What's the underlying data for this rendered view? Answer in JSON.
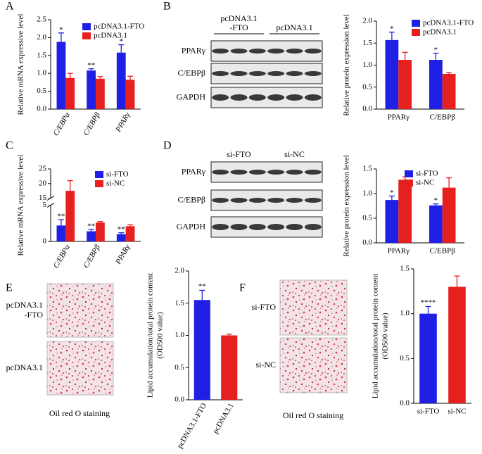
{
  "chart_data": [
    {
      "type": "bar",
      "panel": "A",
      "ylabel": "Relative mRNA expressive level",
      "categories": [
        "C/EBPα",
        "C/EBPβ",
        "PPARγ"
      ],
      "series": [
        {
          "name": "pcDNA3.1-FTO",
          "color": "#1f1fe6",
          "values": [
            1.88,
            1.08,
            1.58
          ],
          "errors": [
            0.25,
            0.05,
            0.22
          ],
          "annotations": [
            "*",
            "**",
            "*"
          ]
        },
        {
          "name": "pcDNA3.1",
          "color": "#e61f1f",
          "values": [
            0.87,
            0.85,
            0.82
          ],
          "errors": [
            0.13,
            0.06,
            0.1
          ]
        }
      ],
      "ylim": [
        0,
        2.5
      ],
      "yticks": [
        {
          "value": 0,
          "label": "0.0"
        },
        {
          "value": 0.5,
          "label": "0.5"
        },
        {
          "value": 1,
          "label": "1.0"
        },
        {
          "value": 1.5,
          "label": "1.5"
        },
        {
          "value": 2,
          "label": "2.0"
        },
        {
          "value": 2.5,
          "label": "2.5"
        }
      ]
    },
    {
      "type": "bar",
      "panel": "B",
      "ylabel": "Relative protein expression level",
      "categories": [
        "PPARγ",
        "C/EBPβ"
      ],
      "series": [
        {
          "name": "pcDNA3.1-FTO",
          "color": "#1f1fe6",
          "values": [
            1.57,
            1.12
          ],
          "errors": [
            0.18,
            0.15
          ],
          "annotations": [
            "*",
            "*"
          ]
        },
        {
          "name": "pcDNA3.1",
          "color": "#e61f1f",
          "values": [
            1.12,
            0.8
          ],
          "errors": [
            0.17,
            0.03
          ]
        }
      ],
      "ylim": [
        0,
        2
      ],
      "yticks": [
        {
          "value": 0,
          "label": "0.0"
        },
        {
          "value": 0.5,
          "label": "0.5"
        },
        {
          "value": 1,
          "label": "1.0"
        },
        {
          "value": 1.5,
          "label": "1.5"
        },
        {
          "value": 2,
          "label": "2.0"
        }
      ]
    },
    {
      "type": "bar",
      "panel": "C",
      "ylabel": "Relative mRNA expressive level",
      "categories": [
        "C/EBPα",
        "C/EBPβ",
        "PPARγ"
      ],
      "series": [
        {
          "name": "si-FTO",
          "color": "#1f1fe6",
          "values": [
            2.2,
            1.4,
            1.0
          ],
          "errors": [
            0.8,
            0.25,
            0.2
          ],
          "annotations": [
            "**",
            "**",
            "**"
          ]
        },
        {
          "name": "si-NC",
          "color": "#e61f1f",
          "values": [
            17.5,
            2.6,
            2.1
          ],
          "errors": [
            3.5,
            0.15,
            0.2
          ]
        }
      ],
      "ylim": [
        0,
        25
      ],
      "ybreak": [
        5,
        15
      ],
      "yticks": [
        0,
        5,
        15,
        20,
        25
      ]
    },
    {
      "type": "bar",
      "panel": "D",
      "ylabel": "Relative protein expression level",
      "categories": [
        "PPARγ",
        "C/EBPβ"
      ],
      "series": [
        {
          "name": "si-FTO",
          "color": "#1f1fe6",
          "values": [
            0.87,
            0.76
          ],
          "errors": [
            0.08,
            0.03
          ],
          "annotations": [
            "*",
            "*"
          ]
        },
        {
          "name": "si-NC",
          "color": "#e61f1f",
          "values": [
            1.28,
            1.12
          ],
          "errors": [
            0.06,
            0.2
          ]
        }
      ],
      "ylim": [
        0,
        1.5
      ],
      "yticks": [
        {
          "value": 0,
          "label": "0.0"
        },
        {
          "value": 0.5,
          "label": "0.5"
        },
        {
          "value": 1,
          "label": "1.0"
        },
        {
          "value": 1.5,
          "label": "1.5"
        }
      ]
    },
    {
      "type": "bar",
      "panel": "E",
      "ylabel": [
        "Lipid accumulation/total protein content",
        "(OD500 value)"
      ],
      "categories": [
        "pcDNA3.1-FTO",
        "pcDNA3.1"
      ],
      "values": [
        1.55,
        1.0
      ],
      "errors": [
        0.15,
        0.02
      ],
      "colors": [
        "#1f1fe6",
        "#e61f1f"
      ],
      "annotations": [
        "**",
        null
      ],
      "ylim": [
        0,
        2
      ],
      "yticks": [
        {
          "value": 0,
          "label": "0.0"
        },
        {
          "value": 0.5,
          "label": "0.5"
        },
        {
          "value": 1,
          "label": "1.0"
        },
        {
          "value": 1.5,
          "label": "1.5"
        },
        {
          "value": 2,
          "label": "2.0"
        }
      ]
    },
    {
      "type": "bar",
      "panel": "F",
      "ylabel": [
        "Lipid accumulation/total protein content",
        "(OD500 value)"
      ],
      "categories": [
        "si-FTO",
        "si-NC"
      ],
      "values": [
        1.0,
        1.3
      ],
      "errors": [
        0.08,
        0.12
      ],
      "colors": [
        "#1f1fe6",
        "#e61f1f"
      ],
      "annotations": [
        "****",
        null
      ],
      "ylim": [
        0,
        1.5
      ],
      "yticks": [
        {
          "value": 0,
          "label": "0.0"
        },
        {
          "value": 0.5,
          "label": "0.5"
        },
        {
          "value": 1,
          "label": "1.0"
        },
        {
          "value": 1.5,
          "label": "1.5"
        }
      ]
    }
  ],
  "blots": [
    {
      "groups": [
        [
          "pcDNA3.1",
          "-FTO"
        ],
        [
          "pcDNA3.1"
        ]
      ],
      "rows": [
        "PPARγ",
        "C/EBPβ",
        "GAPDH"
      ]
    },
    {
      "groups": [
        [
          "si-FTO"
        ],
        [
          "si-NC"
        ]
      ],
      "rows": [
        "PPARγ",
        "C/EBPβ",
        "GAPDH"
      ]
    }
  ],
  "stains": [
    {
      "labels": [
        [
          "pcDNA3.1",
          "-FTO"
        ],
        [
          "pcDNA3.1"
        ]
      ],
      "caption": "Oil red O staining"
    },
    {
      "labels": [
        [
          "si-FTO"
        ],
        [
          "si-NC"
        ]
      ],
      "caption": "Oil red O staining"
    }
  ]
}
